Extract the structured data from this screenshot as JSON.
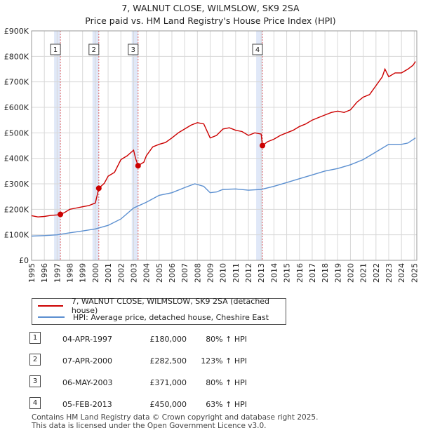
{
  "header": {
    "title_line1": "7, WALNUT CLOSE, WILMSLOW, SK9 2SA",
    "title_line2": "Price paid vs. HM Land Registry's House Price Index (HPI)"
  },
  "chart_data": {
    "type": "line",
    "title": "7, WALNUT CLOSE, WILMSLOW, SK9 2SA",
    "subtitle": "Price paid vs. HM Land Registry's House Price Index (HPI)",
    "xlabel": "",
    "ylabel": "",
    "xlim": [
      1995.0,
      2025.2
    ],
    "ylim": [
      0,
      900000
    ],
    "ytick_values": [
      0,
      100000,
      200000,
      300000,
      400000,
      500000,
      600000,
      700000,
      800000,
      900000
    ],
    "ytick_labels": [
      "£0",
      "£100K",
      "£200K",
      "£300K",
      "£400K",
      "£500K",
      "£600K",
      "£700K",
      "£800K",
      "£900K"
    ],
    "xtick_values": [
      1995,
      1996,
      1997,
      1998,
      1999,
      2000,
      2001,
      2002,
      2003,
      2004,
      2005,
      2006,
      2007,
      2008,
      2009,
      2010,
      2011,
      2012,
      2013,
      2014,
      2015,
      2016,
      2017,
      2018,
      2019,
      2020,
      2021,
      2022,
      2023,
      2024,
      2025
    ],
    "xtick_labels": [
      "1995",
      "1996",
      "1997",
      "1998",
      "1999",
      "2000",
      "2001",
      "2002",
      "2003",
      "2004",
      "2005",
      "2006",
      "2007",
      "2008",
      "2009",
      "2010",
      "2011",
      "2012",
      "2013",
      "2014",
      "2015",
      "2016",
      "2017",
      "2018",
      "2019",
      "2020",
      "2021",
      "2022",
      "2023",
      "2024",
      "2025"
    ],
    "grid": true,
    "series": [
      {
        "name": "7, WALNUT CLOSE, WILMSLOW, SK9 2SA (detached house)",
        "color": "#cc0000",
        "x": [
          1995.0,
          1995.5,
          1996.0,
          1996.5,
          1997.0,
          1997.26,
          1997.6,
          1998.0,
          1998.5,
          1999.0,
          1999.5,
          2000.0,
          2000.27,
          2000.7,
          2001.0,
          2001.5,
          2002.0,
          2002.5,
          2003.0,
          2003.15,
          2003.35,
          2003.8,
          2004.0,
          2004.5,
          2005.0,
          2005.5,
          2006.0,
          2006.5,
          2007.0,
          2007.5,
          2008.0,
          2008.5,
          2009.0,
          2009.5,
          2010.0,
          2010.5,
          2011.0,
          2011.5,
          2012.0,
          2012.5,
          2013.0,
          2013.1,
          2013.5,
          2014.0,
          2014.5,
          2015.0,
          2015.5,
          2016.0,
          2016.5,
          2017.0,
          2017.5,
          2018.0,
          2018.5,
          2019.0,
          2019.5,
          2020.0,
          2020.5,
          2021.0,
          2021.5,
          2022.0,
          2022.5,
          2022.7,
          2023.0,
          2023.5,
          2024.0,
          2024.5,
          2024.9,
          2025.1
        ],
        "values": [
          175000,
          170000,
          172000,
          176000,
          178000,
          180000,
          188000,
          200000,
          205000,
          210000,
          215000,
          225000,
          282500,
          302000,
          330000,
          345000,
          395000,
          410000,
          432000,
          400000,
          371000,
          385000,
          410000,
          445000,
          455000,
          462000,
          480000,
          500000,
          515000,
          530000,
          540000,
          535000,
          480000,
          490000,
          515000,
          520000,
          510000,
          505000,
          490000,
          500000,
          495000,
          450000,
          465000,
          475000,
          490000,
          500000,
          510000,
          525000,
          535000,
          550000,
          560000,
          570000,
          580000,
          585000,
          580000,
          590000,
          620000,
          640000,
          650000,
          685000,
          720000,
          750000,
          720000,
          735000,
          735000,
          750000,
          765000,
          780000
        ]
      },
      {
        "name": "HPI: Average price, detached house, Cheshire East",
        "color": "#5b8fd0",
        "x": [
          1995.0,
          1996.0,
          1997.0,
          1998.0,
          1999.0,
          2000.0,
          2001.0,
          2002.0,
          2003.0,
          2004.0,
          2005.0,
          2006.0,
          2007.0,
          2007.8,
          2008.5,
          2009.0,
          2009.5,
          2010.0,
          2011.0,
          2012.0,
          2013.0,
          2014.0,
          2015.0,
          2016.0,
          2017.0,
          2018.0,
          2019.0,
          2020.0,
          2021.0,
          2022.0,
          2023.0,
          2024.0,
          2024.5,
          2025.1
        ],
        "values": [
          95000,
          97000,
          100000,
          108000,
          115000,
          123000,
          137000,
          162000,
          205000,
          228000,
          255000,
          265000,
          285000,
          300000,
          290000,
          265000,
          268000,
          278000,
          280000,
          275000,
          278000,
          290000,
          305000,
          320000,
          335000,
          350000,
          360000,
          375000,
          395000,
          425000,
          455000,
          455000,
          460000,
          480000
        ]
      }
    ],
    "sales": [
      {
        "label": "1",
        "x": 1997.26,
        "value": 180000
      },
      {
        "label": "2",
        "x": 2000.27,
        "value": 282500
      },
      {
        "label": "3",
        "x": 2003.35,
        "value": 371000
      },
      {
        "label": "4",
        "x": 2013.1,
        "value": 450000
      }
    ]
  },
  "legend": {
    "property_label": "7, WALNUT CLOSE, WILMSLOW, SK9 2SA (detached house)",
    "hpi_label": "HPI: Average price, detached house, Cheshire East",
    "property_color": "#cc0000",
    "hpi_color": "#5b8fd0"
  },
  "sales_table": [
    {
      "num": "1",
      "date": "04-APR-1997",
      "price": "£180,000",
      "hpi": "80% ↑ HPI"
    },
    {
      "num": "2",
      "date": "07-APR-2000",
      "price": "£282,500",
      "hpi": "123% ↑ HPI"
    },
    {
      "num": "3",
      "date": "06-MAY-2003",
      "price": "£371,000",
      "hpi": "80% ↑ HPI"
    },
    {
      "num": "4",
      "date": "05-FEB-2013",
      "price": "£450,000",
      "hpi": "63% ↑ HPI"
    }
  ],
  "footer": {
    "line1": "Contains HM Land Registry data © Crown copyright and database right 2025.",
    "line2": "This data is licensed under the Open Government Licence v3.0."
  }
}
